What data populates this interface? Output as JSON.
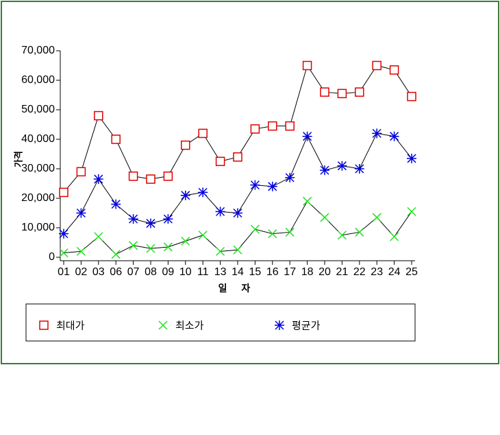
{
  "chart_data": {
    "type": "line",
    "categories": [
      "01",
      "02",
      "03",
      "06",
      "07",
      "08",
      "09",
      "10",
      "11",
      "13",
      "14",
      "15",
      "16",
      "17",
      "18",
      "20",
      "21",
      "22",
      "23",
      "24",
      "25"
    ],
    "xlabel": "일 자",
    "ylabel": "가격",
    "ylim": [
      0,
      70000
    ],
    "yticks": [
      0,
      {
        "value": 10000,
        "label": "10,000"
      },
      {
        "value": 20000,
        "label": "20,000"
      },
      {
        "value": 30000,
        "label": "30,000"
      },
      {
        "value": 40000,
        "label": "40,000"
      },
      {
        "value": 50000,
        "label": "50,000"
      },
      {
        "value": 60000,
        "label": "60,000"
      },
      {
        "value": 70000,
        "label": "70,000"
      }
    ],
    "line_color": "#000000",
    "series": [
      {
        "name": "최대가",
        "color": "#e00000",
        "marker": "square",
        "values": [
          22000,
          29000,
          48000,
          40000,
          27500,
          26500,
          27500,
          38000,
          42000,
          32500,
          34000,
          43500,
          44500,
          44500,
          65000,
          56000,
          55500,
          56000,
          65000,
          63500,
          54500
        ]
      },
      {
        "name": "최소가",
        "color": "#22e022",
        "marker": "x",
        "values": [
          1500,
          2000,
          7000,
          1000,
          4000,
          3000,
          3500,
          5500,
          7500,
          2000,
          2500,
          9500,
          8000,
          8500,
          19000,
          13500,
          7500,
          8500,
          13500,
          7000,
          15500
        ]
      },
      {
        "name": "평균가",
        "color": "#0000e0",
        "marker": "asterisk",
        "values": [
          8000,
          15000,
          26500,
          18000,
          13000,
          11500,
          13000,
          21000,
          22000,
          15500,
          15000,
          24500,
          24000,
          27000,
          41000,
          29500,
          31000,
          30000,
          42000,
          41000,
          33500
        ]
      }
    ]
  }
}
